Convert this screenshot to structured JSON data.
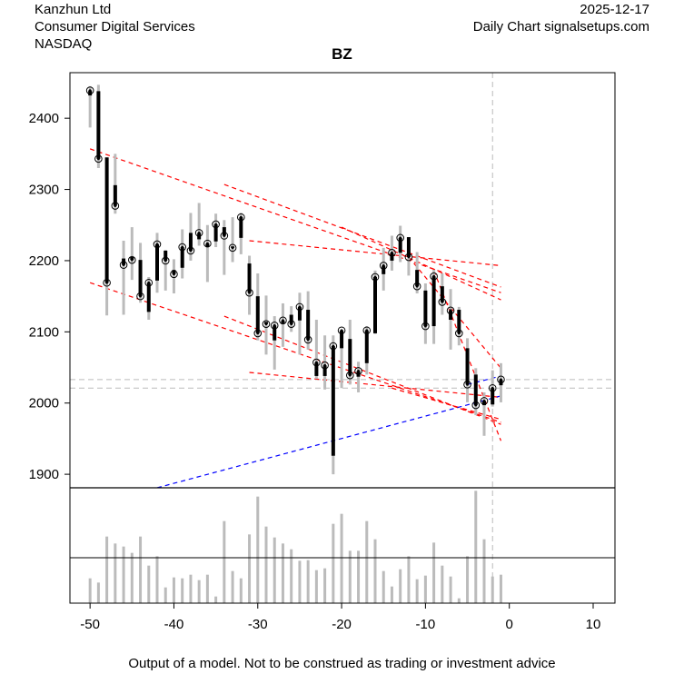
{
  "header": {
    "company": "Kanzhun Ltd",
    "sector": "Consumer Digital Services",
    "exchange": "NASDAQ",
    "date": "2025-12-17",
    "source": "Daily Chart signalsetups.com"
  },
  "footer": "Output of a model. Not to be construed as trading or investment advice",
  "chart_data": {
    "type": "candlestick",
    "title": "BZ",
    "xlim": [
      -52.4,
      12.6
    ],
    "ylim": [
      1881,
      2464
    ],
    "x_ticks": [
      -50,
      -40,
      -30,
      -20,
      -10,
      0,
      10
    ],
    "y_ticks": [
      1900,
      2000,
      2100,
      2200,
      2300,
      2400
    ],
    "colors": {
      "body": "#000000",
      "wick": "#bbbbbb",
      "trend": "#ff0000",
      "support": "#0000ff",
      "ref": "#bbbbbb",
      "volume": "#bbbbbb"
    },
    "candles": {
      "x": [
        -50,
        -49,
        -48,
        -47,
        -46,
        -45,
        -44,
        -43,
        -42,
        -41,
        -40,
        -39,
        -38,
        -37,
        -36,
        -35,
        -34,
        -33,
        -32,
        -31,
        -30,
        -29,
        -28,
        -27,
        -26,
        -25,
        -24,
        -23,
        -22,
        -21,
        -20,
        -19,
        -18,
        -17,
        -16,
        -15,
        -14,
        -13,
        -12,
        -11,
        -10,
        -9,
        -8,
        -7,
        -6,
        -5,
        -4,
        -3,
        -2,
        -1
      ],
      "open": [
        2432,
        2438,
        2345,
        2306,
        2203,
        2205,
        2201,
        2128,
        2172,
        2214,
        2187,
        2190,
        2239,
        2230,
        2219,
        2227,
        2247,
        2220,
        2232,
        2196,
        2150,
        2114,
        2088,
        2112,
        2124,
        2116,
        2131,
        2038,
        2038,
        1926,
        2077,
        2090,
        2037,
        2056,
        2098,
        2181,
        2200,
        2211,
        2233,
        2187,
        2158,
        2108,
        2164,
        2117,
        2131,
        2077,
        2040,
        1997,
        1998,
        2025
      ],
      "high": [
        2445,
        2447,
        2345,
        2350,
        2228,
        2247,
        2225,
        2177,
        2239,
        2215,
        2202,
        2244,
        2267,
        2281,
        2250,
        2266,
        2257,
        2261,
        2267,
        2207,
        2182,
        2151,
        2122,
        2140,
        2136,
        2155,
        2157,
        2117,
        2095,
        2095,
        2102,
        2117,
        2058,
        2108,
        2186,
        2218,
        2235,
        2249,
        2233,
        2212,
        2168,
        2187,
        2182,
        2160,
        2135,
        2091,
        2049,
        2015,
        2046,
        2056
      ],
      "low": [
        2387,
        2330,
        2123,
        2266,
        2124,
        2173,
        2141,
        2117,
        2155,
        2158,
        2154,
        2175,
        2200,
        2221,
        2170,
        2219,
        2180,
        2198,
        2209,
        2124,
        2088,
        2068,
        2047,
        2079,
        2100,
        2068,
        2075,
        2034,
        2019,
        1900,
        2021,
        2026,
        2015,
        2040,
        2097,
        2158,
        2186,
        2198,
        2179,
        2154,
        2083,
        2083,
        2124,
        2075,
        2081,
        2001,
        1983,
        1954,
        1995,
        2001
      ],
      "close": [
        2439,
        2343,
        2169,
        2277,
        2194,
        2201,
        2150,
        2169,
        2223,
        2200,
        2181,
        2219,
        2214,
        2239,
        2224,
        2251,
        2235,
        2218,
        2261,
        2155,
        2098,
        2111,
        2109,
        2116,
        2111,
        2135,
        2089,
        2057,
        2053,
        2080,
        2102,
        2039,
        2045,
        2102,
        2177,
        2193,
        2211,
        2232,
        2205,
        2164,
        2108,
        2178,
        2142,
        2130,
        2098,
        2026,
        1997,
        2003,
        2021,
        2033
      ]
    },
    "volume_relative": [
      82,
      68,
      220,
      197,
      187,
      166,
      220,
      124,
      155,
      52,
      85,
      82,
      94,
      76,
      94,
      22,
      271,
      106,
      82,
      227,
      352,
      253,
      217,
      197,
      178,
      140,
      142,
      109,
      115,
      262,
      295,
      173,
      173,
      271,
      211,
      106,
      55,
      112,
      155,
      79,
      91,
      200,
      124,
      88,
      16,
      155,
      371,
      211,
      88,
      94
    ],
    "trend_lines": [
      {
        "color": "red",
        "from": [
          -50,
          2357
        ],
        "to": [
          -1,
          2155
        ]
      },
      {
        "color": "red",
        "from": [
          -34,
          2307
        ],
        "to": [
          -1,
          2163
        ]
      },
      {
        "color": "red",
        "from": [
          -50,
          2169
        ],
        "to": [
          -1,
          1973
        ]
      },
      {
        "color": "red",
        "from": [
          -34,
          2122
        ],
        "to": [
          -1,
          1970
        ]
      },
      {
        "color": "red",
        "from": [
          -31,
          2228
        ],
        "to": [
          -1,
          2193
        ]
      },
      {
        "color": "red",
        "from": [
          -31,
          2043
        ],
        "to": [
          -1,
          2008
        ]
      },
      {
        "color": "red",
        "from": [
          -20,
          2247
        ],
        "to": [
          -1,
          2145
        ]
      },
      {
        "color": "red",
        "from": [
          -12,
          2205
        ],
        "to": [
          -1,
          2049
        ]
      },
      {
        "color": "red",
        "from": [
          -9,
          2186
        ],
        "to": [
          -1,
          1947
        ]
      },
      {
        "color": "red",
        "from": [
          -14,
          2021
        ],
        "to": [
          -1,
          1977
        ]
      },
      {
        "color": "blue",
        "from": [
          -42,
          1881
        ],
        "to": [
          -1,
          2010
        ]
      },
      {
        "color": "blue",
        "from": [
          -5,
          2026
        ],
        "to": [
          -1,
          2038
        ]
      }
    ],
    "ref_hlines": [
      2033,
      2021
    ],
    "ref_vline": -2
  }
}
